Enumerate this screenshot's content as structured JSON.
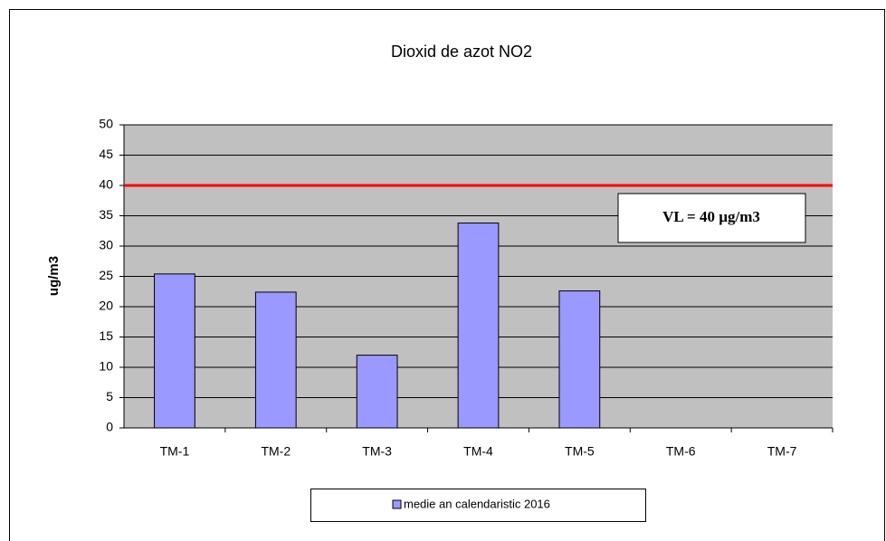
{
  "chart_data": {
    "type": "bar",
    "title": "Dioxid de azot NO2",
    "y_label": "ug/m3",
    "categories": [
      "TM-1",
      "TM-2",
      "TM-3",
      "TM-4",
      "TM-5",
      "TM-6",
      "TM-7"
    ],
    "series": [
      {
        "name": "medie an calendaristic 2016",
        "color": "#9999ff",
        "values": [
          25.4,
          22.4,
          12,
          33.8,
          22.6,
          null,
          null
        ]
      }
    ],
    "ylim": [
      0,
      50
    ],
    "yticks": [
      0,
      5,
      10,
      15,
      20,
      25,
      30,
      35,
      40,
      45,
      50
    ],
    "grid": true,
    "reference_line": {
      "value": 40,
      "color": "#ff0000",
      "label": "VL = 40 µg/m3"
    },
    "legend": "bottom"
  }
}
